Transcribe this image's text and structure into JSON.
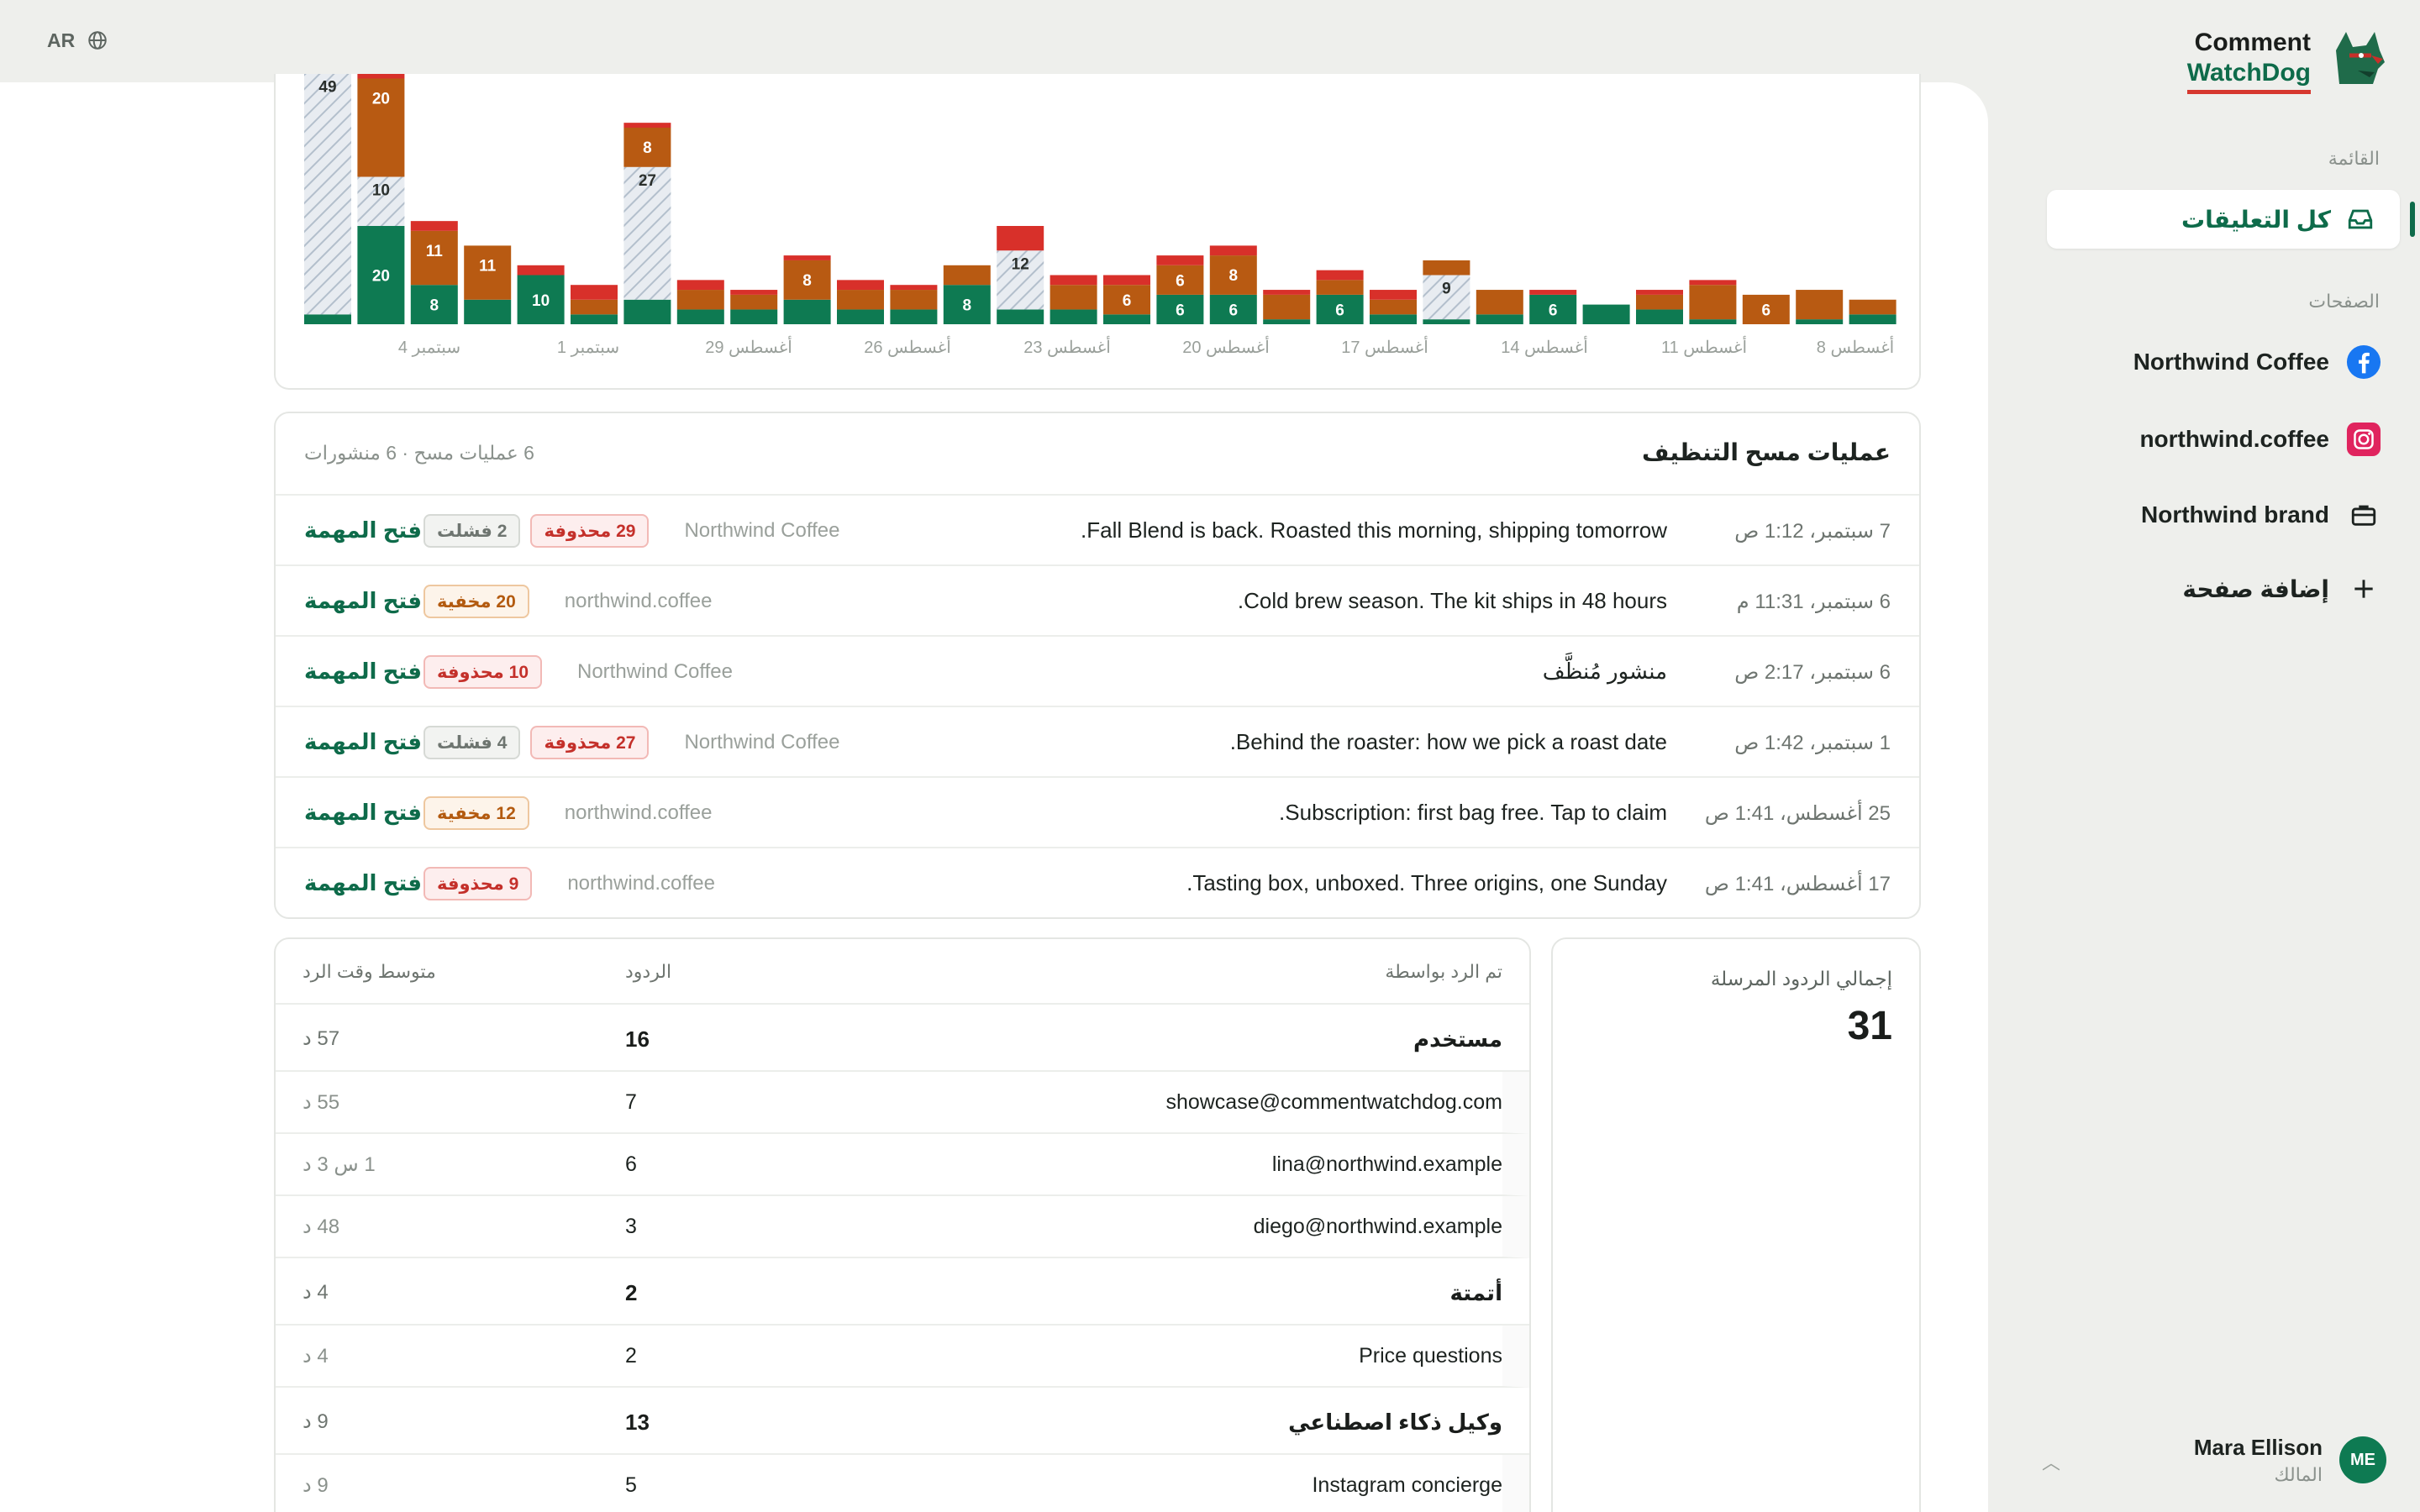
{
  "topbar": {
    "lang": "AR"
  },
  "brand": {
    "line1": "Comment",
    "line2": "WatchDog"
  },
  "sidebar": {
    "menu_label": "القائمة",
    "active_item": "كل التعليقات",
    "pages_label": "الصفحات",
    "pages": [
      {
        "label": "Northwind Coffee",
        "icon": "facebook-icon"
      },
      {
        "label": "northwind.coffee",
        "icon": "instagram-icon"
      },
      {
        "label": "Northwind brand",
        "icon": "briefcase-icon"
      }
    ],
    "add_page": "إضافة صفحة"
  },
  "user": {
    "name": "Mara Ellison",
    "role": "المالك",
    "initials": "ME"
  },
  "chart_data": {
    "type": "bar",
    "stacked": true,
    "direction": "rtl",
    "categories_ltr_order": "right-to-left dates, latest on the left",
    "tick_labels": [
      "4 سبتمبر",
      "1 سبتمبر",
      "29 أغسطس",
      "26 أغسطس",
      "23 أغسطس",
      "20 أغسطس",
      "17 أغسطس",
      "14 أغسطس",
      "11 أغسطس",
      "8 أغسطس"
    ],
    "series_colors": {
      "hidden": "#c8d0d8",
      "deleted": "#b85a12",
      "failed": "#d8302a",
      "kept": "#0e7a52"
    },
    "bars": [
      {
        "kept": 2,
        "hidden": 49,
        "deleted": 0,
        "failed": 0,
        "label_kept": "",
        "label_hidden": "49",
        "label_deleted": ""
      },
      {
        "kept": 20,
        "hidden": 10,
        "deleted": 20,
        "failed": 3,
        "label_kept": "20",
        "label_hidden": "10",
        "label_deleted": "20"
      },
      {
        "kept": 8,
        "hidden": 0,
        "deleted": 11,
        "failed": 2,
        "label_kept": "8",
        "label_hidden": "",
        "label_deleted": "11"
      },
      {
        "kept": 5,
        "hidden": 0,
        "deleted": 11,
        "failed": 0,
        "label_kept": "",
        "label_hidden": "",
        "label_deleted": "11"
      },
      {
        "kept": 10,
        "hidden": 0,
        "deleted": 0,
        "failed": 2,
        "label_kept": "10",
        "label_hidden": "",
        "label_deleted": ""
      },
      {
        "kept": 2,
        "hidden": 0,
        "deleted": 3,
        "failed": 3,
        "label_kept": "",
        "label_hidden": "",
        "label_deleted": ""
      },
      {
        "kept": 5,
        "hidden": 27,
        "deleted": 8,
        "failed": 1,
        "label_kept": "",
        "label_hidden": "27",
        "label_deleted": "8"
      },
      {
        "kept": 3,
        "hidden": 0,
        "deleted": 4,
        "failed": 2,
        "label_kept": "",
        "label_hidden": "",
        "label_deleted": ""
      },
      {
        "kept": 3,
        "hidden": 0,
        "deleted": 3,
        "failed": 1,
        "label_kept": "",
        "label_hidden": "",
        "label_deleted": ""
      },
      {
        "kept": 5,
        "hidden": 0,
        "deleted": 8,
        "failed": 1,
        "label_kept": "",
        "label_hidden": "",
        "label_deleted": "8"
      },
      {
        "kept": 3,
        "hidden": 0,
        "deleted": 4,
        "failed": 2,
        "label_kept": "",
        "label_hidden": "",
        "label_deleted": ""
      },
      {
        "kept": 3,
        "hidden": 0,
        "deleted": 4,
        "failed": 1,
        "label_kept": "",
        "label_hidden": "",
        "label_deleted": ""
      },
      {
        "kept": 8,
        "hidden": 0,
        "deleted": 4,
        "failed": 0,
        "label_kept": "8",
        "label_hidden": "",
        "label_deleted": ""
      },
      {
        "kept": 3,
        "hidden": 12,
        "deleted": 0,
        "failed": 5,
        "label_kept": "",
        "label_hidden": "12",
        "label_deleted": ""
      },
      {
        "kept": 3,
        "hidden": 0,
        "deleted": 5,
        "failed": 2,
        "label_kept": "",
        "label_hidden": "",
        "label_deleted": ""
      },
      {
        "kept": 2,
        "hidden": 0,
        "deleted": 6,
        "failed": 2,
        "label_kept": "",
        "label_hidden": "",
        "label_deleted": "6"
      },
      {
        "kept": 6,
        "hidden": 0,
        "deleted": 6,
        "failed": 2,
        "label_kept": "6",
        "label_hidden": "",
        "label_deleted": "6"
      },
      {
        "kept": 6,
        "hidden": 0,
        "deleted": 8,
        "failed": 2,
        "label_kept": "6",
        "label_hidden": "",
        "label_deleted": "8"
      },
      {
        "kept": 1,
        "hidden": 0,
        "deleted": 5,
        "failed": 1,
        "label_kept": "",
        "label_hidden": "",
        "label_deleted": ""
      },
      {
        "kept": 6,
        "hidden": 0,
        "deleted": 3,
        "failed": 2,
        "label_kept": "6",
        "label_hidden": "",
        "label_deleted": ""
      },
      {
        "kept": 2,
        "hidden": 0,
        "deleted": 3,
        "failed": 2,
        "label_kept": "",
        "label_hidden": "",
        "label_deleted": ""
      },
      {
        "kept": 1,
        "hidden": 9,
        "deleted": 3,
        "failed": 0,
        "label_kept": "",
        "label_hidden": "9",
        "label_deleted": ""
      },
      {
        "kept": 2,
        "hidden": 0,
        "deleted": 5,
        "failed": 0,
        "label_kept": "",
        "label_hidden": "",
        "label_deleted": ""
      },
      {
        "kept": 6,
        "hidden": 0,
        "deleted": 0,
        "failed": 1,
        "label_kept": "6",
        "label_hidden": "",
        "label_deleted": ""
      },
      {
        "kept": 4,
        "hidden": 0,
        "deleted": 0,
        "failed": 0,
        "label_kept": "",
        "label_hidden": "",
        "label_deleted": ""
      },
      {
        "kept": 3,
        "hidden": 0,
        "deleted": 3,
        "failed": 1,
        "label_kept": "",
        "label_hidden": "",
        "label_deleted": ""
      },
      {
        "kept": 1,
        "hidden": 0,
        "deleted": 7,
        "failed": 1,
        "label_kept": "",
        "label_hidden": "",
        "label_deleted": ""
      },
      {
        "kept": 0,
        "hidden": 0,
        "deleted": 6,
        "failed": 0,
        "label_kept": "",
        "label_hidden": "",
        "label_deleted": "6"
      },
      {
        "kept": 1,
        "hidden": 0,
        "deleted": 6,
        "failed": 0,
        "label_kept": "",
        "label_hidden": "",
        "label_deleted": ""
      },
      {
        "kept": 2,
        "hidden": 0,
        "deleted": 3,
        "failed": 0,
        "label_kept": "",
        "label_hidden": "",
        "label_deleted": ""
      }
    ]
  },
  "operations": {
    "title": "عمليات مسح التنظيف",
    "summary": "6 عمليات مسح · 6 منشورات",
    "open_label": "فتح المهمة",
    "rows": [
      {
        "time": "7 سبتمبر، 1:12 ص",
        "post": "Fall Blend is back. Roasted this morning, shipping tomorrow.",
        "source": "Northwind Coffee",
        "badges": [
          {
            "type": "deleted",
            "text": "29 محذوفة"
          },
          {
            "type": "failed",
            "text": "2 فشلت"
          }
        ]
      },
      {
        "time": "6 سبتمبر، 11:31 م",
        "post": "Cold brew season. The kit ships in 48 hours.",
        "source": "northwind.coffee",
        "badges": [
          {
            "type": "hidden",
            "text": "20 مخفية"
          }
        ]
      },
      {
        "time": "6 سبتمبر، 2:17 ص",
        "post": "منشور مُنظَّف",
        "source": "Northwind Coffee",
        "badges": [
          {
            "type": "deleted",
            "text": "10 محذوفة"
          }
        ]
      },
      {
        "time": "1 سبتمبر، 1:42 ص",
        "post": "Behind the roaster: how we pick a roast date.",
        "source": "Northwind Coffee",
        "badges": [
          {
            "type": "deleted",
            "text": "27 محذوفة"
          },
          {
            "type": "failed",
            "text": "4 فشلت"
          }
        ]
      },
      {
        "time": "25 أغسطس، 1:41 ص",
        "post": "Subscription: first bag free. Tap to claim.",
        "source": "northwind.coffee",
        "badges": [
          {
            "type": "hidden",
            "text": "12 مخفية"
          }
        ]
      },
      {
        "time": "17 أغسطس، 1:41 ص",
        "post": "Tasting box, unboxed. Three origins, one Sunday.",
        "source": "northwind.coffee",
        "badges": [
          {
            "type": "deleted",
            "text": "9 محذوفة"
          }
        ]
      }
    ]
  },
  "totals": {
    "label": "إجمالي الردود المرسلة",
    "value": "31"
  },
  "replies": {
    "headers": {
      "by": "تم الرد بواسطة",
      "count": "الردود",
      "avg": "متوسط وقت الرد"
    },
    "rows": [
      {
        "kind": "group",
        "by": "مستخدم",
        "count": "16",
        "avg": "57 د"
      },
      {
        "kind": "sub",
        "by": "showcase@commentwatchdog.com",
        "count": "7",
        "avg": "55 د"
      },
      {
        "kind": "sub",
        "by": "lina@northwind.example",
        "count": "6",
        "avg": "1 س 3 د"
      },
      {
        "kind": "sub",
        "by": "diego@northwind.example",
        "count": "3",
        "avg": "48 د"
      },
      {
        "kind": "group",
        "by": "أتمتة",
        "count": "2",
        "avg": "4 د"
      },
      {
        "kind": "sub",
        "by": "Price questions",
        "count": "2",
        "avg": "4 د"
      },
      {
        "kind": "group",
        "by": "وكيل ذكاء اصطناعي",
        "count": "13",
        "avg": "9 د"
      },
      {
        "kind": "sub",
        "by": "Instagram concierge",
        "count": "5",
        "avg": "9 د"
      }
    ]
  }
}
